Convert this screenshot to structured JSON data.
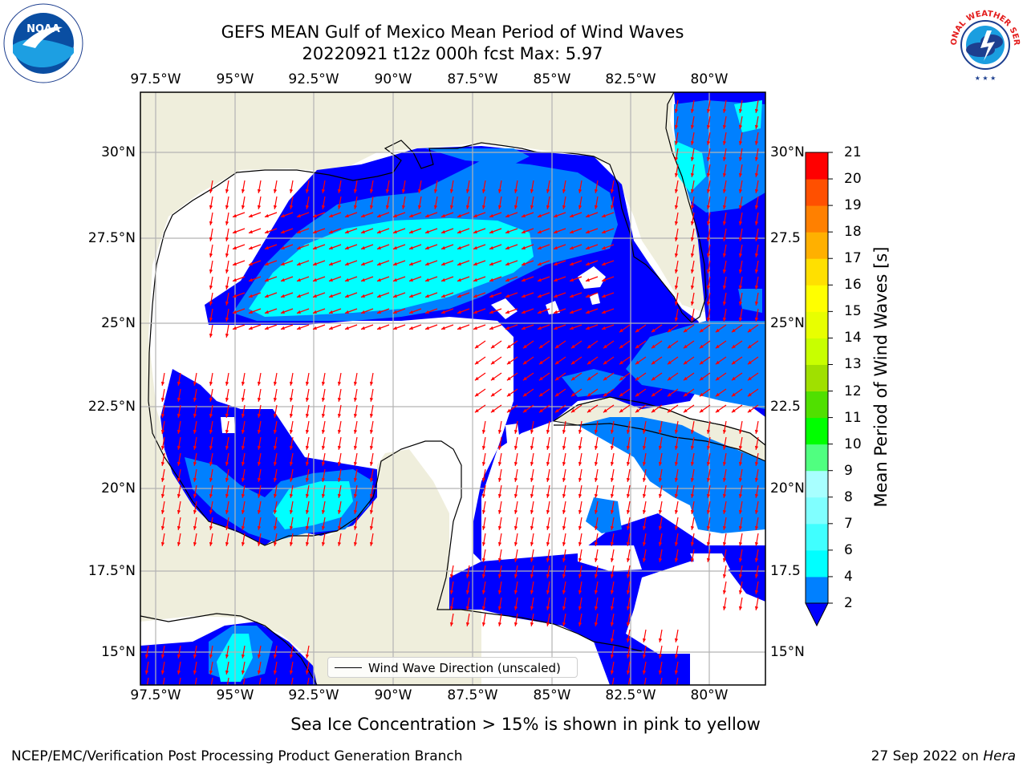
{
  "title": {
    "line1": "GEFS MEAN Gulf of Mexico Mean Period of Wind Waves",
    "line2": "20220921 t12z 000h fcst   Max: 5.97"
  },
  "map": {
    "lon_labels": [
      "97.5°W",
      "95°W",
      "92.5°W",
      "90°W",
      "87.5°W",
      "85°W",
      "82.5°W",
      "80°W"
    ],
    "lat_labels": [
      "30°N",
      "27.5°N",
      "25°N",
      "22.5°N",
      "20°N",
      "17.5°N",
      "15°N"
    ],
    "lat_labels_right": [
      "30°N",
      "27.5",
      "25°N",
      "22.5",
      "20°N",
      "17.5",
      "15°N"
    ],
    "land_color": "#efeedc",
    "ocean_color": "#ffffff",
    "grid_color": "#b3b3b3",
    "arrow_color": "#ff0000"
  },
  "legend": {
    "label": "Wind Wave Direction (unscaled)"
  },
  "colorbar": {
    "label": "Mean Period of Wind Waves [s]",
    "ticks": [
      "2",
      "4",
      "6",
      "7",
      "8",
      "9",
      "10",
      "11",
      "12",
      "13",
      "14",
      "15",
      "16",
      "17",
      "18",
      "19",
      "20",
      "21"
    ],
    "colors": [
      "#0080ff",
      "#00ffff",
      "#40ffff",
      "#80ffff",
      "#a8ffff",
      "#50ff80",
      "#00ff00",
      "#50e000",
      "#a0e000",
      "#c8ff00",
      "#e8ff00",
      "#ffff00",
      "#ffe000",
      "#ffb000",
      "#ff8000",
      "#ff5000",
      "#ff0000"
    ],
    "under_color": "#0000ff"
  },
  "subcaption": "Sea Ice Concentration > 15% is shown in pink to yellow",
  "footer": {
    "left": "NCEP/EMC/Verification Post Processing Product Generation Branch",
    "right_date": "27 Sep 2022 on",
    "right_machine": "Hera"
  },
  "logos": {
    "noaa_text": "NOAA",
    "nws_text": "NATIONAL WEATHER SERVICE"
  }
}
